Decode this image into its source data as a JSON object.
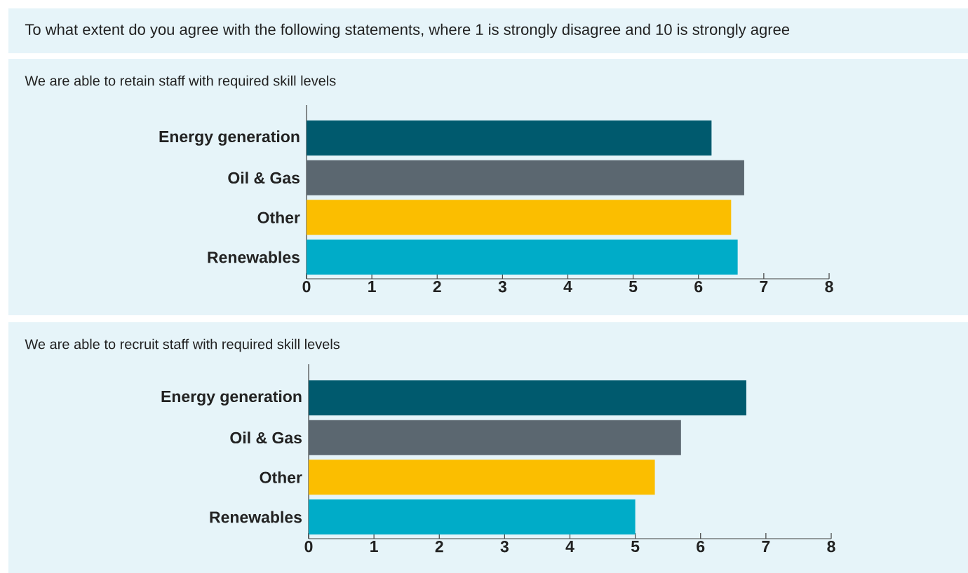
{
  "chart_data": [
    {
      "type": "bar",
      "orientation": "horizontal",
      "title": "To what extent do you agree with the following statements, where 1 is strongly disagree and 10 is strongly agree",
      "subtitle": "We are able to retain staff with required skill levels",
      "categories": [
        "Energy generation",
        "Oil & Gas",
        "Other",
        "Renewables"
      ],
      "values": [
        6.2,
        6.7,
        6.5,
        6.6
      ],
      "colors": [
        "#005a6e",
        "#5b6770",
        "#fbbe00",
        "#00acc8"
      ],
      "xlim": [
        0,
        8
      ],
      "xticks": [
        0,
        1,
        2,
        3,
        4,
        5,
        6,
        7,
        8
      ]
    },
    {
      "type": "bar",
      "orientation": "horizontal",
      "subtitle": "We are able to recruit staff with required skill levels",
      "categories": [
        "Energy generation",
        "Oil & Gas",
        "Other",
        "Renewables"
      ],
      "values": [
        6.7,
        5.7,
        5.3,
        5.0
      ],
      "colors": [
        "#005a6e",
        "#5b6770",
        "#fbbe00",
        "#00acc8"
      ],
      "xlim": [
        0,
        8
      ],
      "xticks": [
        0,
        1,
        2,
        3,
        4,
        5,
        6,
        7,
        8
      ]
    }
  ]
}
